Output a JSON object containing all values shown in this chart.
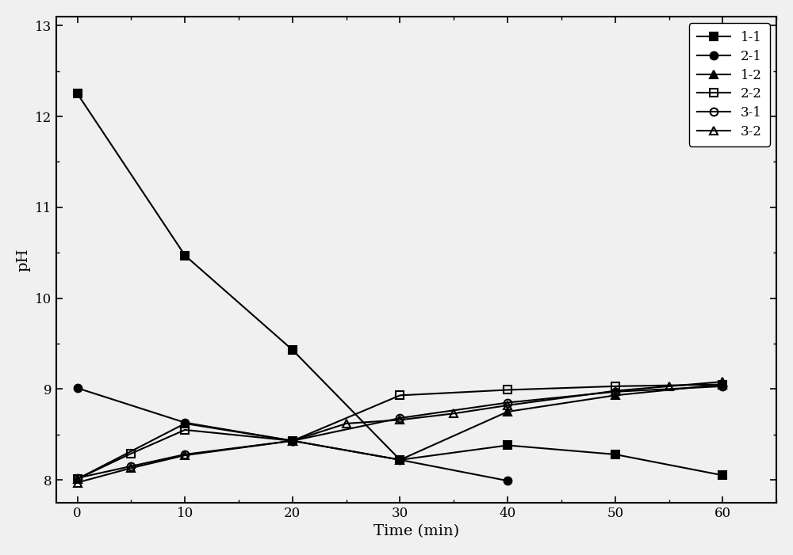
{
  "series": [
    {
      "label": "1-1",
      "x": [
        0,
        10,
        20,
        30,
        40,
        50,
        60
      ],
      "y": [
        12.25,
        10.47,
        9.43,
        8.22,
        8.38,
        8.28,
        8.05
      ],
      "marker": "s",
      "fillstyle": "full",
      "color": "#000000",
      "markersize": 7,
      "linewidth": 1.5
    },
    {
      "label": "2-1",
      "x": [
        0,
        10,
        20,
        30,
        40
      ],
      "y": [
        9.01,
        8.63,
        8.43,
        8.22,
        7.99
      ],
      "marker": "o",
      "fillstyle": "full",
      "color": "#000000",
      "markersize": 7,
      "linewidth": 1.5
    },
    {
      "label": "1-2",
      "x": [
        0,
        10,
        20,
        30,
        40,
        50,
        60
      ],
      "y": [
        8.01,
        8.62,
        8.43,
        8.22,
        8.75,
        8.93,
        9.05
      ],
      "marker": "^",
      "fillstyle": "full",
      "color": "#000000",
      "markersize": 7,
      "linewidth": 1.5
    },
    {
      "label": "2-2",
      "x": [
        0,
        5,
        10,
        20,
        30,
        40,
        50,
        60
      ],
      "y": [
        8.01,
        8.29,
        8.55,
        8.43,
        8.93,
        8.99,
        9.03,
        9.05
      ],
      "marker": "s",
      "fillstyle": "none",
      "color": "#000000",
      "markersize": 7,
      "linewidth": 1.5
    },
    {
      "label": "3-1",
      "x": [
        0,
        5,
        10,
        20,
        30,
        40,
        50,
        60
      ],
      "y": [
        8.02,
        8.15,
        8.28,
        8.43,
        8.68,
        8.85,
        8.97,
        9.03
      ],
      "marker": "o",
      "fillstyle": "none",
      "color": "#000000",
      "markersize": 7,
      "linewidth": 1.5
    },
    {
      "label": "3-2",
      "x": [
        0,
        5,
        10,
        20,
        25,
        30,
        35,
        40,
        50,
        55,
        60
      ],
      "y": [
        7.97,
        8.13,
        8.27,
        8.43,
        8.62,
        8.66,
        8.73,
        8.82,
        8.98,
        9.03,
        9.08
      ],
      "marker": "^",
      "fillstyle": "none",
      "color": "#000000",
      "markersize": 7,
      "linewidth": 1.5
    }
  ],
  "xlabel": "Time (min)",
  "ylabel": "pH",
  "xlim": [
    -2,
    65
  ],
  "ylim": [
    7.75,
    13.1
  ],
  "xticks": [
    0,
    10,
    20,
    30,
    40,
    50,
    60
  ],
  "yticks": [
    8,
    9,
    10,
    11,
    12,
    13
  ],
  "figsize": [
    10.0,
    7.01
  ],
  "dpi": 100
}
